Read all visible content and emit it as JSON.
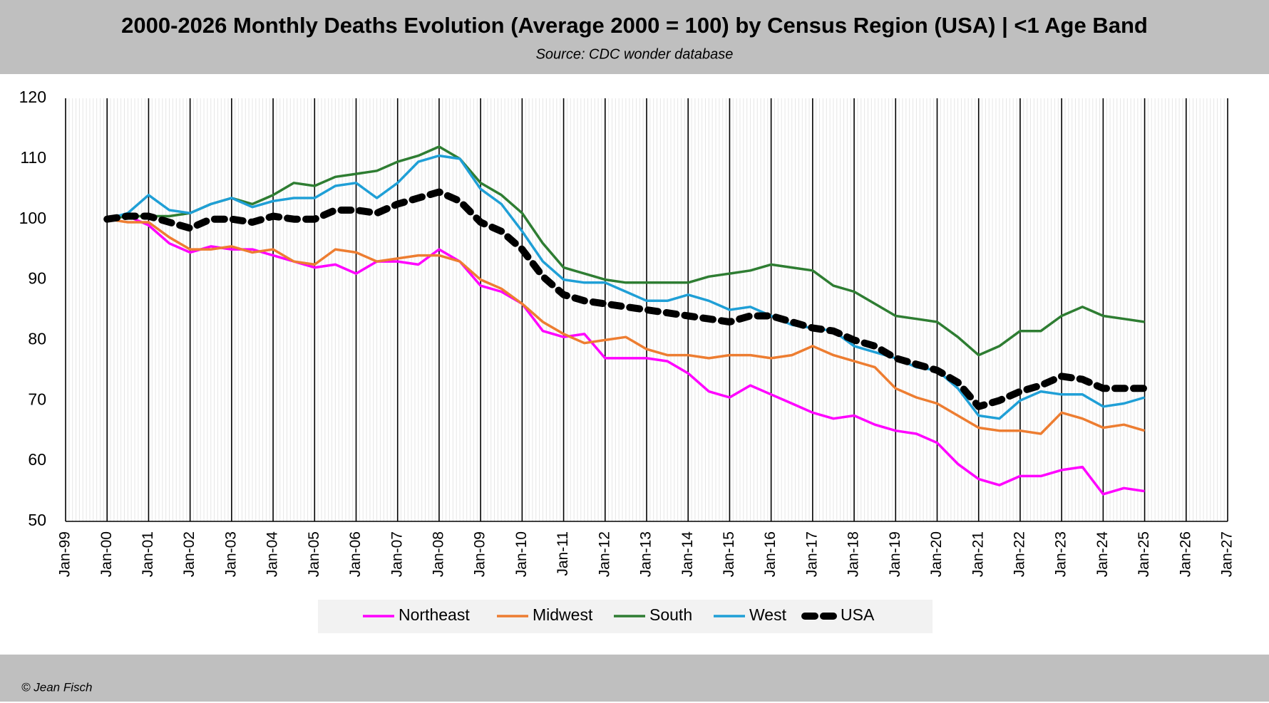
{
  "chart_data": {
    "type": "line",
    "title": "2000-2026 Monthly Deaths Evolution (Average 2000 = 100) by Census Region (USA) | <1 Age Band",
    "subtitle": "Source: CDC wonder database",
    "credit": "© Jean Fisch",
    "x": [
      "Jan-00",
      "Jul-00",
      "Jan-01",
      "Jul-01",
      "Jan-02",
      "Jul-02",
      "Jan-03",
      "Jul-03",
      "Jan-04",
      "Jul-04",
      "Jan-05",
      "Jul-05",
      "Jan-06",
      "Jul-06",
      "Jan-07",
      "Jul-07",
      "Jan-08",
      "Jul-08",
      "Jan-09",
      "Jul-09",
      "Jan-10",
      "Jul-10",
      "Jan-11",
      "Jul-11",
      "Jan-12",
      "Jul-12",
      "Jan-13",
      "Jul-13",
      "Jan-14",
      "Jul-14",
      "Jan-15",
      "Jul-15",
      "Jan-16",
      "Jul-16",
      "Jan-17",
      "Jul-17",
      "Jan-18",
      "Jul-18",
      "Jan-19",
      "Jul-19",
      "Jan-20",
      "Jul-20",
      "Jan-21",
      "Jul-21",
      "Jan-22",
      "Jul-22",
      "Jan-23",
      "Jul-23",
      "Jan-24",
      "Jul-24",
      "Jan-25"
    ],
    "series": [
      {
        "name": "Northeast",
        "color": "#ff00ff",
        "values": [
          100,
          100.5,
          99,
          96,
          94.5,
          95.5,
          95,
          95,
          94,
          93,
          92,
          92.5,
          91,
          93,
          93,
          92.5,
          95,
          93,
          89,
          88,
          86,
          81.5,
          80.5,
          81,
          77,
          77,
          77,
          76.5,
          74.5,
          71.5,
          70.5,
          72.5,
          71,
          69.5,
          68,
          67,
          67.5,
          66,
          65,
          64.5,
          63,
          59.5,
          57,
          56,
          57.5,
          57.5,
          58.5,
          59,
          54.5,
          55.5,
          55
        ]
      },
      {
        "name": "Midwest",
        "color": "#ed7d31",
        "values": [
          100,
          99.5,
          99.5,
          97,
          95,
          95,
          95.5,
          94.5,
          95,
          93,
          92.5,
          95,
          94.5,
          93,
          93.5,
          94,
          94,
          93,
          90,
          88.5,
          86,
          83,
          81,
          79.5,
          80,
          80.5,
          78.5,
          77.5,
          77.5,
          77,
          77.5,
          77.5,
          77,
          77.5,
          79,
          77.5,
          76.5,
          75.5,
          72,
          70.5,
          69.5,
          67.5,
          65.5,
          65,
          65,
          64.5,
          68,
          67,
          65.5,
          66,
          65
        ]
      },
      {
        "name": "South",
        "color": "#2e7d32",
        "values": [
          100,
          100.5,
          100.5,
          100.5,
          101,
          102.5,
          103.5,
          102.5,
          104,
          106,
          105.5,
          107,
          107.5,
          108,
          109.5,
          110.5,
          112,
          110,
          106,
          104,
          101,
          96,
          92,
          91,
          90,
          89.5,
          89.5,
          89.5,
          89.5,
          90.5,
          91,
          91.5,
          92.5,
          92,
          91.5,
          89,
          88,
          86,
          84,
          83.5,
          83,
          80.5,
          77.5,
          79,
          81.5,
          81.5,
          84,
          85.5,
          84,
          83.5,
          83
        ]
      },
      {
        "name": "West",
        "color": "#1f9fd6",
        "values": [
          100,
          101,
          104,
          101.5,
          101,
          102.5,
          103.5,
          102,
          103,
          103.5,
          103.5,
          105.5,
          106,
          103.5,
          106,
          109.5,
          110.5,
          110,
          105,
          102.5,
          98,
          93,
          90,
          89.5,
          89.5,
          88,
          86.5,
          86.5,
          87.5,
          86.5,
          85,
          85.5,
          84,
          82.5,
          82,
          81.5,
          79,
          78,
          77,
          75.5,
          75,
          72,
          67.5,
          67,
          70,
          71.5,
          71,
          71,
          69,
          69.5,
          70.5
        ]
      },
      {
        "name": "USA",
        "color": "#000000",
        "dashed": true,
        "values": [
          100,
          100.5,
          100.5,
          99.5,
          98.5,
          100,
          100,
          99.5,
          100.5,
          100,
          100,
          101.5,
          101.5,
          101,
          102.5,
          103.5,
          104.5,
          103,
          99.5,
          98,
          95,
          90.5,
          87.5,
          86.5,
          86,
          85.5,
          85,
          84.5,
          84,
          83.5,
          83,
          84,
          84,
          83,
          82,
          81.5,
          80,
          79,
          77,
          76,
          75,
          73,
          69,
          70,
          71.5,
          72.5,
          74,
          73.5,
          72,
          72,
          72
        ]
      }
    ],
    "xlim": [
      "Jan-99",
      "Jan-27"
    ],
    "xticks": [
      "Jan-99",
      "Jan-00",
      "Jan-01",
      "Jan-02",
      "Jan-03",
      "Jan-04",
      "Jan-05",
      "Jan-06",
      "Jan-07",
      "Jan-08",
      "Jan-09",
      "Jan-10",
      "Jan-11",
      "Jan-12",
      "Jan-13",
      "Jan-14",
      "Jan-15",
      "Jan-16",
      "Jan-17",
      "Jan-18",
      "Jan-19",
      "Jan-20",
      "Jan-21",
      "Jan-22",
      "Jan-23",
      "Jan-24",
      "Jan-25",
      "Jan-26",
      "Jan-27"
    ],
    "ylim": [
      50,
      120
    ],
    "yticks": [
      50,
      60,
      70,
      80,
      90,
      100,
      110,
      120
    ],
    "grid": "x",
    "legend": "bottom"
  }
}
